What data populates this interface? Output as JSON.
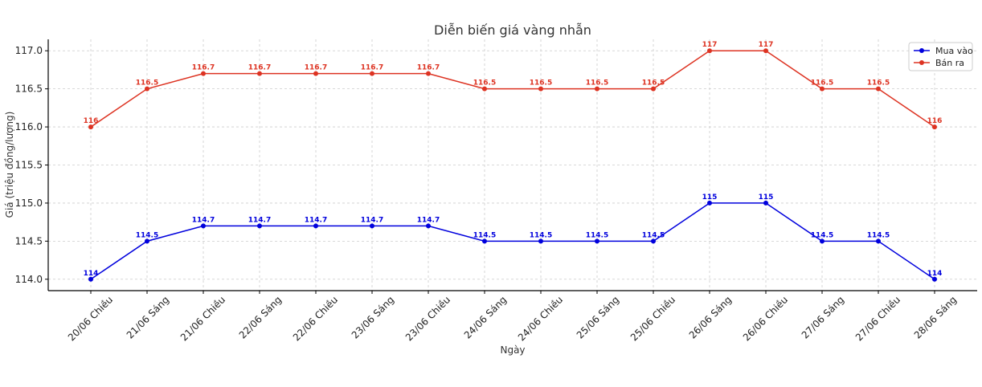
{
  "chart_data": {
    "type": "line",
    "title": "Diễn biến giá vàng nhẫn",
    "xlabel": "Ngày",
    "ylabel": "Giá (triệu đồng/lượng)",
    "categories": [
      "20/06 Chiều",
      "21/06 Sáng",
      "21/06 Chiều",
      "22/06 Sáng",
      "22/06 Chiều",
      "23/06 Sáng",
      "23/06 Chiều",
      "24/06 Sáng",
      "24/06 Chiều",
      "25/06 Sáng",
      "25/06 Chiều",
      "26/06 Sáng",
      "26/06 Chiều",
      "27/06 Sáng",
      "27/06 Chiều",
      "28/06 Sáng"
    ],
    "ylim": [
      113.85,
      117.15
    ],
    "yticks": [
      "114.0",
      "114.5",
      "115.0",
      "115.5",
      "116.0",
      "116.5",
      "117.0"
    ],
    "grid": true,
    "legend_position": "top-right",
    "series": [
      {
        "name": "Mua vào",
        "color": "#0000dd",
        "values": [
          114,
          114.5,
          114.7,
          114.7,
          114.7,
          114.7,
          114.7,
          114.5,
          114.5,
          114.5,
          114.5,
          115,
          115,
          114.5,
          114.5,
          114
        ],
        "labels": [
          "114",
          "114.5",
          "114.7",
          "114.7",
          "114.7",
          "114.7",
          "114.7",
          "114.5",
          "114.5",
          "114.5",
          "114.5",
          "115",
          "115",
          "114.5",
          "114.5",
          "114"
        ]
      },
      {
        "name": "Bán ra",
        "color": "#dd3322",
        "values": [
          116,
          116.5,
          116.7,
          116.7,
          116.7,
          116.7,
          116.7,
          116.5,
          116.5,
          116.5,
          116.5,
          117,
          117,
          116.5,
          116.5,
          116
        ],
        "labels": [
          "116",
          "116.5",
          "116.7",
          "116.7",
          "116.7",
          "116.7",
          "116.7",
          "116.5",
          "116.5",
          "116.5",
          "116.5",
          "117",
          "117",
          "116.5",
          "116.5",
          "116"
        ]
      }
    ]
  }
}
